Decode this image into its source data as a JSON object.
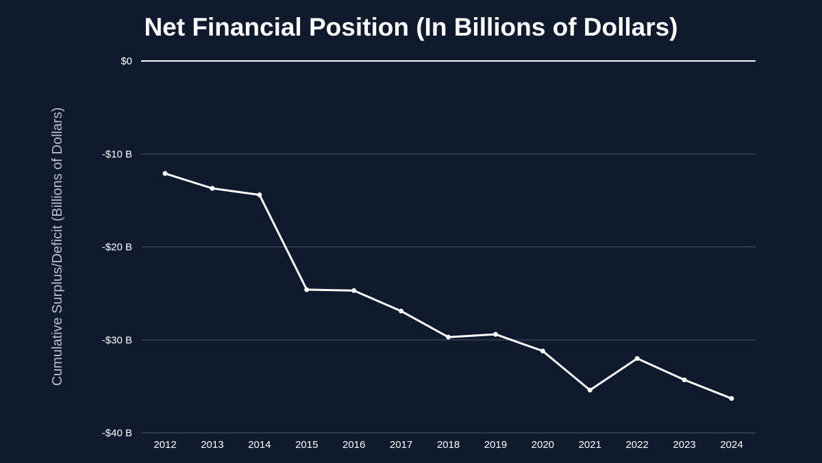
{
  "colors": {
    "background": "#0f1a2e",
    "line": "#ffffff",
    "text": "#ffffff",
    "muted_text": "#b9c0cc",
    "grid": "#4a5568",
    "zero_line": "#ffffff"
  },
  "chart_data": {
    "type": "line",
    "title": "Net Financial Position (In Billions of Dollars)",
    "xlabel": "",
    "ylabel": "Cumulative Surplus/Deficit (Billions of Dollars)",
    "x": [
      "2012",
      "2013",
      "2014",
      "2015",
      "2016",
      "2017",
      "2018",
      "2019",
      "2020",
      "2021",
      "2022",
      "2023",
      "2024"
    ],
    "series": [
      {
        "values": [
          -12.1,
          -13.7,
          -14.4,
          -24.6,
          -24.7,
          -26.9,
          -29.7,
          -29.4,
          -31.2,
          -35.4,
          -32.0,
          -34.3,
          -36.3
        ]
      }
    ],
    "ylim": [
      -40,
      0
    ],
    "yticks": [
      {
        "value": 0,
        "label": "$0"
      },
      {
        "value": -10,
        "label": "-$10 B"
      },
      {
        "value": -20,
        "label": "-$20 B"
      },
      {
        "value": -30,
        "label": "-$30 B"
      },
      {
        "value": -40,
        "label": "-$40 B"
      }
    ],
    "grid": true,
    "markers": true
  }
}
